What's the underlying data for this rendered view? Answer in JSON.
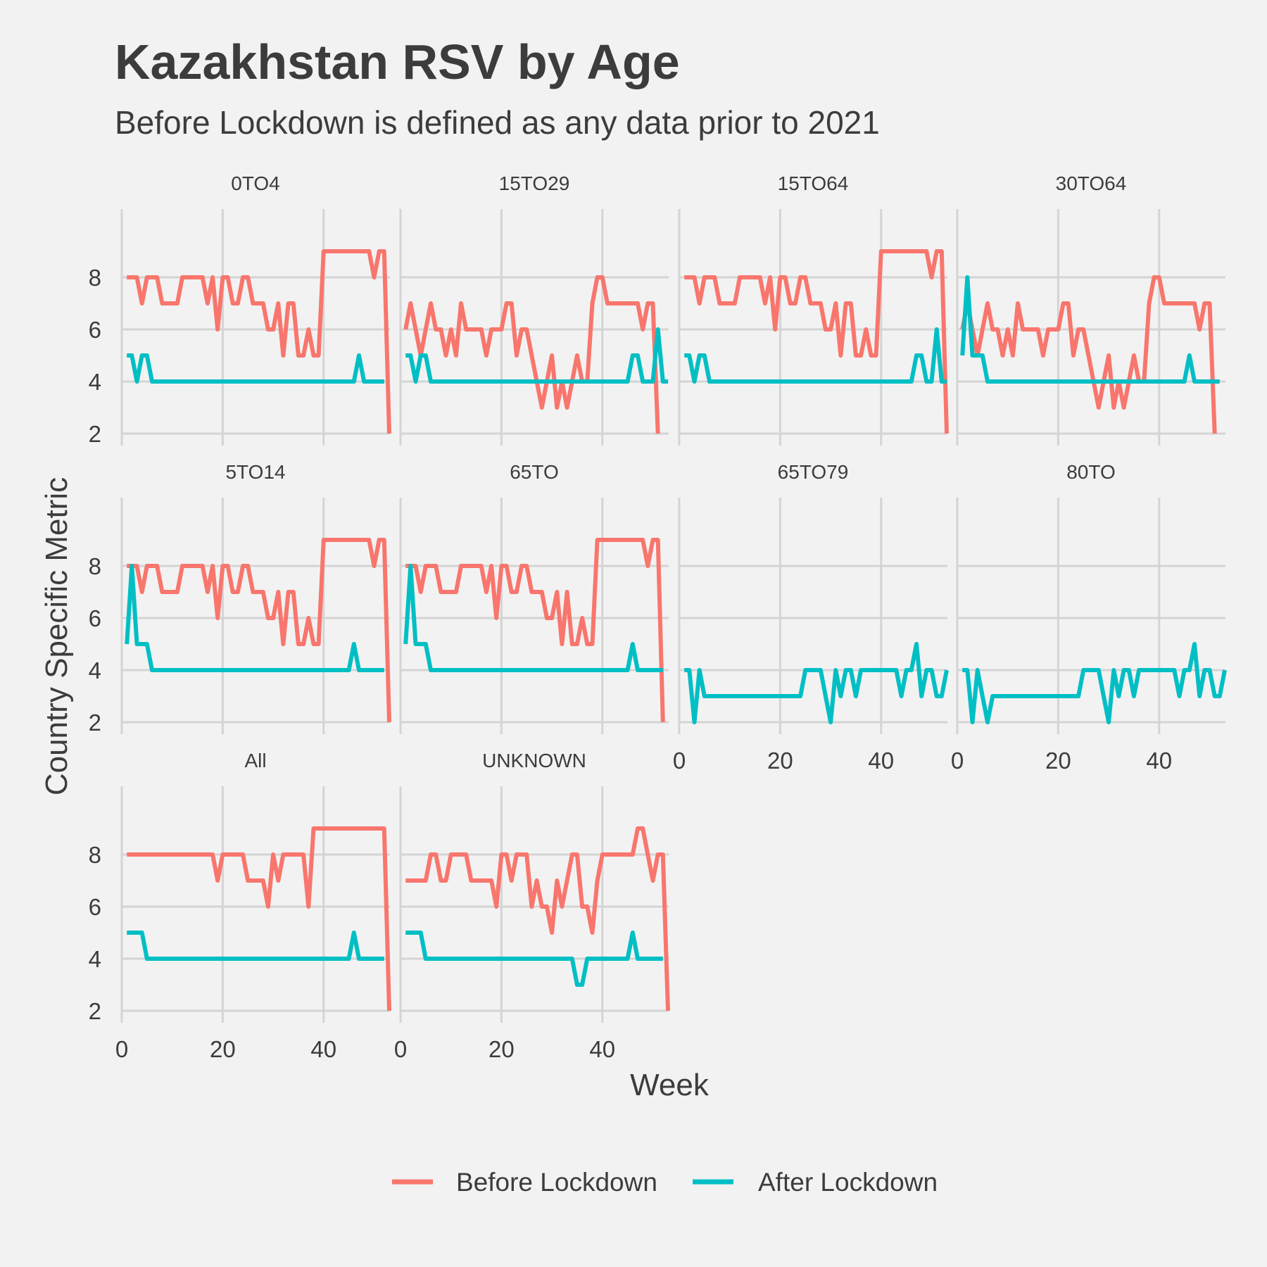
{
  "chart_data": {
    "type": "line",
    "title": "Kazakhstan RSV by Age",
    "subtitle": "Before Lockdown is defined as any data prior to 2021",
    "xlabel": "Week",
    "ylabel": "Country Specific Metric",
    "xlim": [
      0,
      53
    ],
    "ylim": [
      2,
      9
    ],
    "x_ticks": [
      0,
      20,
      40
    ],
    "y_ticks": [
      2,
      4,
      6,
      8
    ],
    "grid": true,
    "legend_position": "bottom",
    "series_meta": [
      {
        "name": "Before Lockdown",
        "color": "#f8766d"
      },
      {
        "name": "After Lockdown",
        "color": "#00bfc4"
      }
    ],
    "facets": [
      {
        "label": "0TO4",
        "before": [
          8,
          8,
          8,
          7,
          8,
          8,
          8,
          7,
          7,
          7,
          7,
          8,
          8,
          8,
          8,
          8,
          7,
          8,
          6,
          8,
          8,
          7,
          7,
          8,
          8,
          7,
          7,
          7,
          6,
          6,
          7,
          5,
          7,
          7,
          5,
          5,
          6,
          5,
          5,
          9,
          9,
          9,
          9,
          9,
          9,
          9,
          9,
          9,
          9,
          8,
          9,
          9,
          2
        ],
        "after": [
          5,
          5,
          4,
          5,
          5,
          4,
          4,
          4,
          4,
          4,
          4,
          4,
          4,
          4,
          4,
          4,
          4,
          4,
          4,
          4,
          4,
          4,
          4,
          4,
          4,
          4,
          4,
          4,
          4,
          4,
          4,
          4,
          4,
          4,
          4,
          4,
          4,
          4,
          4,
          4,
          4,
          4,
          4,
          4,
          4,
          4,
          5,
          4,
          4,
          4,
          4,
          4
        ]
      },
      {
        "label": "15TO29",
        "before": [
          6,
          7,
          6,
          5,
          6,
          7,
          6,
          6,
          5,
          6,
          5,
          7,
          6,
          6,
          6,
          6,
          5,
          6,
          6,
          6,
          7,
          7,
          5,
          6,
          6,
          5,
          4,
          3,
          4,
          5,
          3,
          4,
          3,
          4,
          5,
          4,
          4,
          7,
          8,
          8,
          7,
          7,
          7,
          7,
          7,
          7,
          7,
          6,
          7,
          7,
          2
        ],
        "after": [
          5,
          5,
          4,
          5,
          5,
          4,
          4,
          4,
          4,
          4,
          4,
          4,
          4,
          4,
          4,
          4,
          4,
          4,
          4,
          4,
          4,
          4,
          4,
          4,
          4,
          4,
          4,
          4,
          4,
          4,
          4,
          4,
          4,
          4,
          4,
          4,
          4,
          4,
          4,
          4,
          4,
          4,
          4,
          4,
          4,
          5,
          5,
          4,
          4,
          4,
          6,
          4,
          4
        ]
      },
      {
        "label": "15TO64",
        "before": [
          8,
          8,
          8,
          7,
          8,
          8,
          8,
          7,
          7,
          7,
          7,
          8,
          8,
          8,
          8,
          8,
          7,
          8,
          6,
          8,
          8,
          7,
          7,
          8,
          8,
          7,
          7,
          7,
          6,
          6,
          7,
          5,
          7,
          7,
          5,
          5,
          6,
          5,
          5,
          9,
          9,
          9,
          9,
          9,
          9,
          9,
          9,
          9,
          9,
          8,
          9,
          9,
          2
        ],
        "after": [
          5,
          5,
          4,
          5,
          5,
          4,
          4,
          4,
          4,
          4,
          4,
          4,
          4,
          4,
          4,
          4,
          4,
          4,
          4,
          4,
          4,
          4,
          4,
          4,
          4,
          4,
          4,
          4,
          4,
          4,
          4,
          4,
          4,
          4,
          4,
          4,
          4,
          4,
          4,
          4,
          4,
          4,
          4,
          4,
          4,
          4,
          5,
          5,
          4,
          4,
          6,
          4,
          4
        ]
      },
      {
        "label": "30TO64",
        "before": [
          6,
          7,
          6,
          5,
          6,
          7,
          6,
          6,
          5,
          6,
          5,
          7,
          6,
          6,
          6,
          6,
          5,
          6,
          6,
          6,
          7,
          7,
          5,
          6,
          6,
          5,
          4,
          3,
          4,
          5,
          3,
          4,
          3,
          4,
          5,
          4,
          4,
          7,
          8,
          8,
          7,
          7,
          7,
          7,
          7,
          7,
          7,
          6,
          7,
          7,
          2
        ],
        "after": [
          5,
          8,
          5,
          5,
          5,
          4,
          4,
          4,
          4,
          4,
          4,
          4,
          4,
          4,
          4,
          4,
          4,
          4,
          4,
          4,
          4,
          4,
          4,
          4,
          4,
          4,
          4,
          4,
          4,
          4,
          4,
          4,
          4,
          4,
          4,
          4,
          4,
          4,
          4,
          4,
          4,
          4,
          4,
          4,
          4,
          5,
          4,
          4,
          4,
          4,
          4,
          4
        ]
      },
      {
        "label": "5TO14",
        "before": [
          8,
          8,
          8,
          7,
          8,
          8,
          8,
          7,
          7,
          7,
          7,
          8,
          8,
          8,
          8,
          8,
          7,
          8,
          6,
          8,
          8,
          7,
          7,
          8,
          8,
          7,
          7,
          7,
          6,
          6,
          7,
          5,
          7,
          7,
          5,
          5,
          6,
          5,
          5,
          9,
          9,
          9,
          9,
          9,
          9,
          9,
          9,
          9,
          9,
          8,
          9,
          9,
          2
        ],
        "after": [
          5,
          8,
          5,
          5,
          5,
          4,
          4,
          4,
          4,
          4,
          4,
          4,
          4,
          4,
          4,
          4,
          4,
          4,
          4,
          4,
          4,
          4,
          4,
          4,
          4,
          4,
          4,
          4,
          4,
          4,
          4,
          4,
          4,
          4,
          4,
          4,
          4,
          4,
          4,
          4,
          4,
          4,
          4,
          4,
          4,
          5,
          4,
          4,
          4,
          4,
          4,
          4
        ]
      },
      {
        "label": "65TO",
        "before": [
          8,
          8,
          8,
          7,
          8,
          8,
          8,
          7,
          7,
          7,
          7,
          8,
          8,
          8,
          8,
          8,
          7,
          8,
          6,
          8,
          8,
          7,
          7,
          8,
          8,
          7,
          7,
          7,
          6,
          6,
          7,
          5,
          7,
          5,
          5,
          6,
          5,
          5,
          9,
          9,
          9,
          9,
          9,
          9,
          9,
          9,
          9,
          9,
          8,
          9,
          9,
          2
        ],
        "after": [
          5,
          8,
          5,
          5,
          5,
          4,
          4,
          4,
          4,
          4,
          4,
          4,
          4,
          4,
          4,
          4,
          4,
          4,
          4,
          4,
          4,
          4,
          4,
          4,
          4,
          4,
          4,
          4,
          4,
          4,
          4,
          4,
          4,
          4,
          4,
          4,
          4,
          4,
          4,
          4,
          4,
          4,
          4,
          4,
          4,
          5,
          4,
          4,
          4,
          4,
          4,
          4
        ]
      },
      {
        "label": "65TO79",
        "before": [],
        "after": [
          4,
          4,
          2,
          4,
          3,
          3,
          3,
          3,
          3,
          3,
          3,
          3,
          3,
          3,
          3,
          3,
          3,
          3,
          3,
          3,
          3,
          3,
          3,
          3,
          4,
          4,
          4,
          4,
          3,
          2,
          4,
          3,
          4,
          4,
          3,
          4,
          4,
          4,
          4,
          4,
          4,
          4,
          4,
          3,
          4,
          4,
          5,
          3,
          4,
          4,
          3,
          3,
          4
        ]
      },
      {
        "label": "80TO",
        "before": [],
        "after": [
          4,
          4,
          2,
          4,
          3,
          2,
          3,
          3,
          3,
          3,
          3,
          3,
          3,
          3,
          3,
          3,
          3,
          3,
          3,
          3,
          3,
          3,
          3,
          3,
          4,
          4,
          4,
          4,
          3,
          2,
          4,
          3,
          4,
          4,
          3,
          4,
          4,
          4,
          4,
          4,
          4,
          4,
          4,
          3,
          4,
          4,
          5,
          3,
          4,
          4,
          3,
          3,
          4
        ]
      },
      {
        "label": "All",
        "before": [
          8,
          8,
          8,
          8,
          8,
          8,
          8,
          8,
          8,
          8,
          8,
          8,
          8,
          8,
          8,
          8,
          8,
          8,
          7,
          8,
          8,
          8,
          8,
          8,
          7,
          7,
          7,
          7,
          6,
          8,
          7,
          8,
          8,
          8,
          8,
          8,
          6,
          9,
          9,
          9,
          9,
          9,
          9,
          9,
          9,
          9,
          9,
          9,
          9,
          9,
          9,
          9,
          2
        ],
        "after": [
          5,
          5,
          5,
          5,
          4,
          4,
          4,
          4,
          4,
          4,
          4,
          4,
          4,
          4,
          4,
          4,
          4,
          4,
          4,
          4,
          4,
          4,
          4,
          4,
          4,
          4,
          4,
          4,
          4,
          4,
          4,
          4,
          4,
          4,
          4,
          4,
          4,
          4,
          4,
          4,
          4,
          4,
          4,
          4,
          4,
          5,
          4,
          4,
          4,
          4,
          4,
          4
        ]
      },
      {
        "label": "UNKNOWN",
        "before": [
          7,
          7,
          7,
          7,
          7,
          8,
          8,
          7,
          7,
          8,
          8,
          8,
          8,
          7,
          7,
          7,
          7,
          7,
          6,
          8,
          8,
          7,
          8,
          8,
          8,
          6,
          7,
          6,
          6,
          5,
          7,
          6,
          7,
          8,
          8,
          6,
          6,
          5,
          7,
          8,
          8,
          8,
          8,
          8,
          8,
          8,
          9,
          9,
          8,
          7,
          8,
          8,
          2
        ],
        "after": [
          5,
          5,
          5,
          5,
          4,
          4,
          4,
          4,
          4,
          4,
          4,
          4,
          4,
          4,
          4,
          4,
          4,
          4,
          4,
          4,
          4,
          4,
          4,
          4,
          4,
          4,
          4,
          4,
          4,
          4,
          4,
          4,
          4,
          4,
          3,
          3,
          4,
          4,
          4,
          4,
          4,
          4,
          4,
          4,
          4,
          5,
          4,
          4,
          4,
          4,
          4,
          4
        ]
      }
    ]
  }
}
